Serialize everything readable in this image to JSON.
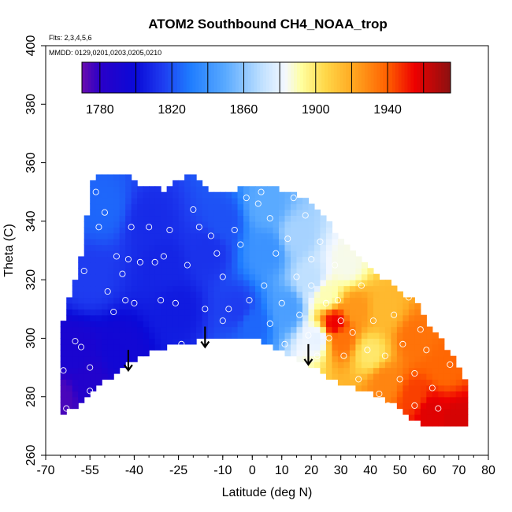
{
  "chart_data": {
    "type": "heatmap",
    "title": "ATOM2 Southbound CH4_NOAA_trop",
    "flights_note": "Flts: 2,3,4,5,6",
    "dates_note": "MMDD: 0129,0201,0203,0205,0210",
    "xlabel": "Latitude (deg N)",
    "ylabel": "Theta (C)",
    "xlim": [
      -70,
      80
    ],
    "ylim": [
      260,
      400
    ],
    "x_ticks": [
      -70,
      -55,
      -40,
      -25,
      -10,
      0,
      10,
      20,
      30,
      40,
      50,
      60,
      70,
      80
    ],
    "y_ticks": [
      260,
      280,
      300,
      320,
      340,
      360,
      380,
      400
    ],
    "colorbar": {
      "min": 1770,
      "max": 1975,
      "tick_values": [
        1780,
        1820,
        1860,
        1900,
        1940
      ],
      "box_edges": [
        1780,
        1800,
        1820,
        1840,
        1860,
        1880,
        1900,
        1920,
        1940,
        1960
      ],
      "stops": [
        {
          "v": 1770,
          "color": "#6a0dad"
        },
        {
          "v": 1780,
          "color": "#2a00c8"
        },
        {
          "v": 1800,
          "color": "#0a0ad8"
        },
        {
          "v": 1815,
          "color": "#1e3cf0"
        },
        {
          "v": 1830,
          "color": "#1e7cff"
        },
        {
          "v": 1850,
          "color": "#5aaaff"
        },
        {
          "v": 1870,
          "color": "#bfe0ff"
        },
        {
          "v": 1883,
          "color": "#f4f8ff"
        },
        {
          "v": 1892,
          "color": "#ffffa0"
        },
        {
          "v": 1905,
          "color": "#ffd84a"
        },
        {
          "v": 1920,
          "color": "#ffaa22"
        },
        {
          "v": 1940,
          "color": "#ff6000"
        },
        {
          "v": 1955,
          "color": "#ee0000"
        },
        {
          "v": 1975,
          "color": "#8b1111"
        }
      ]
    },
    "field": {
      "lat_step": 2,
      "theta_step": 2,
      "boundary_lat": [
        -65,
        -64,
        -60,
        -57,
        -55,
        -52,
        -45,
        -42,
        -38,
        -30,
        -20,
        -15,
        -8,
        0,
        10,
        15,
        20,
        25,
        30,
        40,
        50,
        55,
        60,
        65,
        70,
        72
      ],
      "theta_bottom": [
        285,
        275,
        277,
        279,
        282,
        285,
        288,
        292,
        294,
        297,
        299,
        300,
        301,
        300,
        296,
        293,
        291,
        287,
        284,
        282,
        276,
        272,
        270,
        270,
        270,
        270
      ],
      "theta_top": [
        285,
        305,
        320,
        330,
        352,
        355,
        354,
        355,
        352,
        350,
        356,
        350,
        349,
        352,
        350,
        348,
        345,
        340,
        333,
        323,
        315,
        312,
        303,
        297,
        290,
        286
      ],
      "anchors": [
        {
          "lat": -65,
          "theta": 280,
          "value": 1775
        },
        {
          "lat": -60,
          "theta": 295,
          "value": 1790
        },
        {
          "lat": -55,
          "theta": 285,
          "value": 1785
        },
        {
          "lat": -45,
          "theta": 295,
          "value": 1795
        },
        {
          "lat": -55,
          "theta": 320,
          "value": 1815
        },
        {
          "lat": -50,
          "theta": 345,
          "value": 1825
        },
        {
          "lat": -35,
          "theta": 340,
          "value": 1810
        },
        {
          "lat": -30,
          "theta": 325,
          "value": 1808
        },
        {
          "lat": -25,
          "theta": 310,
          "value": 1805
        },
        {
          "lat": -15,
          "theta": 330,
          "value": 1812
        },
        {
          "lat": -10,
          "theta": 340,
          "value": 1820
        },
        {
          "lat": -5,
          "theta": 310,
          "value": 1815
        },
        {
          "lat": 0,
          "theta": 305,
          "value": 1825
        },
        {
          "lat": 5,
          "theta": 330,
          "value": 1840
        },
        {
          "lat": 5,
          "theta": 345,
          "value": 1850
        },
        {
          "lat": 12,
          "theta": 310,
          "value": 1845
        },
        {
          "lat": 15,
          "theta": 335,
          "value": 1865
        },
        {
          "lat": 20,
          "theta": 320,
          "value": 1870
        },
        {
          "lat": 22,
          "theta": 300,
          "value": 1880
        },
        {
          "lat": 25,
          "theta": 315,
          "value": 1890
        },
        {
          "lat": 28,
          "theta": 305,
          "value": 1955
        },
        {
          "lat": 30,
          "theta": 300,
          "value": 1935
        },
        {
          "lat": 32,
          "theta": 325,
          "value": 1885
        },
        {
          "lat": 35,
          "theta": 310,
          "value": 1925
        },
        {
          "lat": 40,
          "theta": 295,
          "value": 1900
        },
        {
          "lat": 45,
          "theta": 285,
          "value": 1930
        },
        {
          "lat": 45,
          "theta": 310,
          "value": 1915
        },
        {
          "lat": 55,
          "theta": 300,
          "value": 1935
        },
        {
          "lat": 55,
          "theta": 280,
          "value": 1945
        },
        {
          "lat": 60,
          "theta": 275,
          "value": 1958
        },
        {
          "lat": 65,
          "theta": 290,
          "value": 1938
        },
        {
          "lat": 70,
          "theta": 272,
          "value": 1960
        }
      ]
    },
    "observations": [
      {
        "lat": -64,
        "theta": 289
      },
      {
        "lat": -63,
        "theta": 276
      },
      {
        "lat": -60,
        "theta": 299
      },
      {
        "lat": -58,
        "theta": 297
      },
      {
        "lat": -57,
        "theta": 323
      },
      {
        "lat": -55,
        "theta": 290
      },
      {
        "lat": -55,
        "theta": 282
      },
      {
        "lat": -53,
        "theta": 350
      },
      {
        "lat": -52,
        "theta": 338
      },
      {
        "lat": -50,
        "theta": 343
      },
      {
        "lat": -49,
        "theta": 316
      },
      {
        "lat": -47,
        "theta": 309
      },
      {
        "lat": -46,
        "theta": 328
      },
      {
        "lat": -44,
        "theta": 322
      },
      {
        "lat": -43,
        "theta": 313
      },
      {
        "lat": -42,
        "theta": 327
      },
      {
        "lat": -41,
        "theta": 338
      },
      {
        "lat": -40,
        "theta": 312
      },
      {
        "lat": -38,
        "theta": 326
      },
      {
        "lat": -37,
        "theta": 292
      },
      {
        "lat": -35,
        "theta": 338
      },
      {
        "lat": -33,
        "theta": 326
      },
      {
        "lat": -31,
        "theta": 313
      },
      {
        "lat": -30,
        "theta": 328
      },
      {
        "lat": -28,
        "theta": 337
      },
      {
        "lat": -26,
        "theta": 312
      },
      {
        "lat": -24,
        "theta": 298
      },
      {
        "lat": -22,
        "theta": 325
      },
      {
        "lat": -20,
        "theta": 344
      },
      {
        "lat": -18,
        "theta": 338
      },
      {
        "lat": -16,
        "theta": 310
      },
      {
        "lat": -14,
        "theta": 335
      },
      {
        "lat": -12,
        "theta": 329
      },
      {
        "lat": -10,
        "theta": 321
      },
      {
        "lat": -10,
        "theta": 306
      },
      {
        "lat": -8,
        "theta": 310
      },
      {
        "lat": -6,
        "theta": 337
      },
      {
        "lat": -4,
        "theta": 332
      },
      {
        "lat": -2,
        "theta": 348
      },
      {
        "lat": -1,
        "theta": 313
      },
      {
        "lat": 0,
        "theta": 296
      },
      {
        "lat": 2,
        "theta": 346
      },
      {
        "lat": 3,
        "theta": 350
      },
      {
        "lat": 4,
        "theta": 318
      },
      {
        "lat": 6,
        "theta": 341
      },
      {
        "lat": 6,
        "theta": 305
      },
      {
        "lat": 8,
        "theta": 329
      },
      {
        "lat": 10,
        "theta": 312
      },
      {
        "lat": 11,
        "theta": 298
      },
      {
        "lat": 12,
        "theta": 334
      },
      {
        "lat": 14,
        "theta": 348
      },
      {
        "lat": 15,
        "theta": 321
      },
      {
        "lat": 16,
        "theta": 308
      },
      {
        "lat": 18,
        "theta": 342
      },
      {
        "lat": 19,
        "theta": 301
      },
      {
        "lat": 20,
        "theta": 327
      },
      {
        "lat": 20,
        "theta": 318
      },
      {
        "lat": 22,
        "theta": 294
      },
      {
        "lat": 23,
        "theta": 333
      },
      {
        "lat": 25,
        "theta": 312
      },
      {
        "lat": 26,
        "theta": 300
      },
      {
        "lat": 28,
        "theta": 325
      },
      {
        "lat": 29,
        "theta": 313
      },
      {
        "lat": 30,
        "theta": 306
      },
      {
        "lat": 31,
        "theta": 294
      },
      {
        "lat": 34,
        "theta": 302
      },
      {
        "lat": 36,
        "theta": 286
      },
      {
        "lat": 37,
        "theta": 318
      },
      {
        "lat": 39,
        "theta": 296
      },
      {
        "lat": 41,
        "theta": 306
      },
      {
        "lat": 43,
        "theta": 281
      },
      {
        "lat": 45,
        "theta": 294
      },
      {
        "lat": 46,
        "theta": 277
      },
      {
        "lat": 48,
        "theta": 308
      },
      {
        "lat": 50,
        "theta": 286
      },
      {
        "lat": 51,
        "theta": 298
      },
      {
        "lat": 53,
        "theta": 314
      },
      {
        "lat": 55,
        "theta": 277
      },
      {
        "lat": 55,
        "theta": 288
      },
      {
        "lat": 57,
        "theta": 303
      },
      {
        "lat": 59,
        "theta": 296
      },
      {
        "lat": 61,
        "theta": 283
      },
      {
        "lat": 63,
        "theta": 276
      },
      {
        "lat": 67,
        "theta": 291
      }
    ],
    "arrows": [
      {
        "lat": -42,
        "theta_from": 296,
        "theta_to": 289
      },
      {
        "lat": -16,
        "theta_from": 304,
        "theta_to": 297
      },
      {
        "lat": 19,
        "theta_from": 298,
        "theta_to": 291
      }
    ]
  }
}
